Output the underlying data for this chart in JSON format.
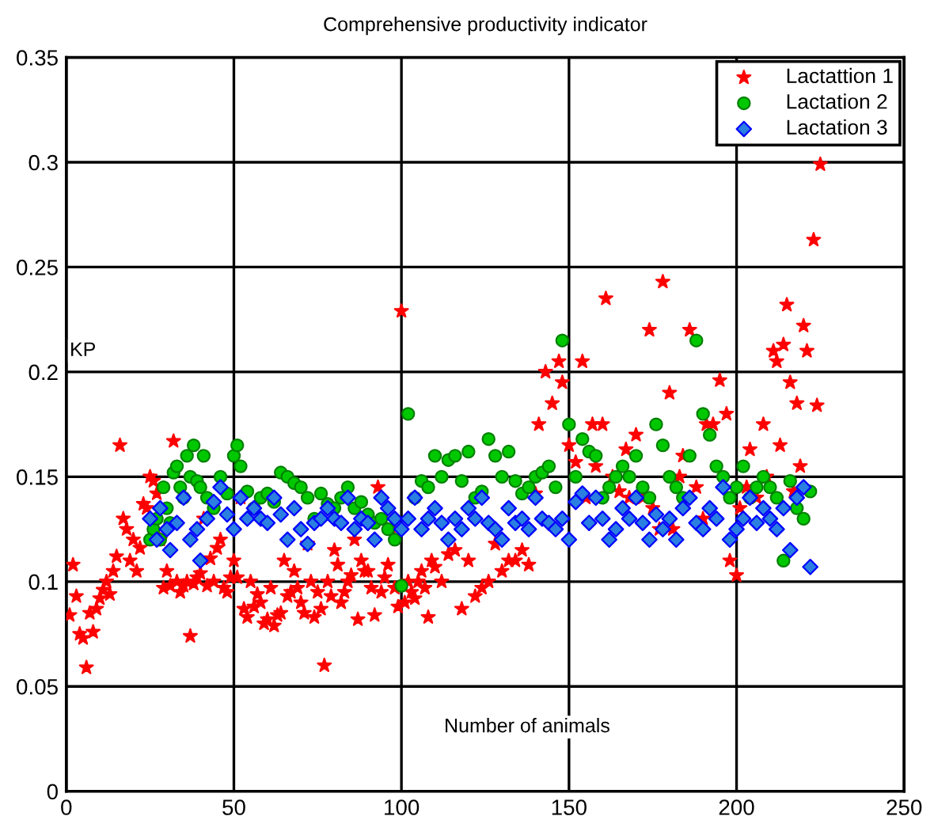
{
  "chart_data": {
    "type": "scatter",
    "title": "Comprehensive productivity indicator",
    "xlabel": "Number of animals",
    "ylabel": "KP",
    "xlim": [
      0,
      250
    ],
    "xticks": [
      0,
      50,
      100,
      150,
      200,
      250
    ],
    "ylim": [
      0,
      0.35
    ],
    "yticks": [
      0,
      0.05,
      0.1,
      0.15,
      0.2,
      0.25,
      0.3,
      0.35
    ],
    "grid": true,
    "legend": "top right",
    "series": [
      {
        "name": "Lactattion 1",
        "color": "#ff0000",
        "marker": "star",
        "x": [
          1,
          2,
          3,
          4,
          5,
          6,
          7,
          8,
          9,
          10,
          11,
          12,
          13,
          14,
          15,
          16,
          17,
          18,
          19,
          20,
          21,
          22,
          23,
          24,
          25,
          26,
          27,
          28,
          29,
          30,
          31,
          32,
          33,
          34,
          35,
          36,
          37,
          38,
          39,
          40,
          41,
          42,
          43,
          44,
          45,
          46,
          47,
          48,
          49,
          50,
          51,
          52,
          53,
          54,
          55,
          56,
          57,
          58,
          59,
          60,
          61,
          62,
          63,
          64,
          65,
          66,
          67,
          68,
          69,
          70,
          71,
          72,
          73,
          74,
          75,
          76,
          77,
          78,
          79,
          80,
          81,
          82,
          83,
          84,
          85,
          86,
          87,
          88,
          89,
          90,
          91,
          92,
          93,
          94,
          95,
          96,
          97,
          98,
          99,
          100,
          101,
          102,
          103,
          104,
          105,
          106,
          107,
          108,
          109,
          110,
          112,
          114,
          116,
          118,
          120,
          122,
          124,
          126,
          128,
          130,
          132,
          134,
          136,
          138,
          140,
          141,
          143,
          145,
          147,
          148,
          150,
          152,
          154,
          155,
          157,
          158,
          160,
          161,
          163,
          165,
          167,
          168,
          170,
          172,
          174,
          175,
          177,
          178,
          180,
          181,
          183,
          184,
          186,
          188,
          190,
          191,
          193,
          195,
          197,
          198,
          200,
          201,
          203,
          204,
          206,
          208,
          209,
          211,
          212,
          213,
          214,
          215,
          216,
          217,
          218,
          219,
          220,
          221,
          225,
          223,
          224
        ],
        "values": [
          0.084,
          0.108,
          0.093,
          0.075,
          0.073,
          0.059,
          0.085,
          0.076,
          0.087,
          0.092,
          0.096,
          0.1,
          0.094,
          0.105,
          0.112,
          0.165,
          0.13,
          0.125,
          0.11,
          0.12,
          0.105,
          0.116,
          0.137,
          0.135,
          0.15,
          0.148,
          0.142,
          0.12,
          0.097,
          0.105,
          0.098,
          0.167,
          0.1,
          0.095,
          0.098,
          0.1,
          0.074,
          0.099,
          0.102,
          0.104,
          0.13,
          0.098,
          0.111,
          0.1,
          0.116,
          0.12,
          0.097,
          0.095,
          0.102,
          0.11,
          0.102,
          0.14,
          0.087,
          0.083,
          0.1,
          0.088,
          0.094,
          0.09,
          0.08,
          0.082,
          0.097,
          0.079,
          0.084,
          0.085,
          0.11,
          0.093,
          0.095,
          0.105,
          0.097,
          0.09,
          0.085,
          0.118,
          0.1,
          0.083,
          0.095,
          0.087,
          0.06,
          0.1,
          0.093,
          0.115,
          0.108,
          0.09,
          0.095,
          0.1,
          0.103,
          0.12,
          0.082,
          0.11,
          0.105,
          0.105,
          0.097,
          0.084,
          0.145,
          0.095,
          0.102,
          0.108,
          0.125,
          0.097,
          0.088,
          0.229,
          0.09,
          0.1,
          0.095,
          0.092,
          0.1,
          0.105,
          0.097,
          0.083,
          0.11,
          0.107,
          0.1,
          0.113,
          0.115,
          0.087,
          0.11,
          0.093,
          0.097,
          0.1,
          0.118,
          0.105,
          0.11,
          0.11,
          0.115,
          0.108,
          0.142,
          0.175,
          0.2,
          0.185,
          0.205,
          0.195,
          0.165,
          0.157,
          0.205,
          0.14,
          0.175,
          0.155,
          0.175,
          0.235,
          0.15,
          0.143,
          0.163,
          0.14,
          0.17,
          0.14,
          0.22,
          0.135,
          0.125,
          0.243,
          0.19,
          0.125,
          0.15,
          0.16,
          0.22,
          0.145,
          0.13,
          0.175,
          0.175,
          0.196,
          0.18,
          0.11,
          0.103,
          0.135,
          0.145,
          0.163,
          0.14,
          0.175,
          0.15,
          0.21,
          0.205,
          0.165,
          0.213,
          0.232,
          0.195,
          0.143,
          0.185,
          0.155,
          0.222,
          0.21,
          0.299,
          0.263,
          0.184
        ]
      },
      {
        "name": "Lactation 2",
        "color": "#00c800",
        "marker": "circle",
        "x": [
          25,
          26,
          27,
          28,
          29,
          30,
          31,
          32,
          33,
          34,
          35,
          36,
          37,
          38,
          39,
          40,
          41,
          42,
          44,
          46,
          48,
          50,
          51,
          52,
          54,
          56,
          58,
          60,
          62,
          64,
          66,
          68,
          70,
          72,
          74,
          76,
          78,
          80,
          82,
          84,
          86,
          88,
          90,
          92,
          94,
          96,
          98,
          100,
          102,
          104,
          106,
          108,
          110,
          112,
          114,
          116,
          118,
          120,
          122,
          124,
          126,
          128,
          130,
          132,
          134,
          136,
          138,
          140,
          142,
          144,
          146,
          148,
          150,
          152,
          154,
          156,
          158,
          160,
          162,
          164,
          166,
          168,
          170,
          172,
          174,
          176,
          178,
          180,
          182,
          184,
          186,
          188,
          190,
          192,
          194,
          196,
          198,
          200,
          202,
          204,
          206,
          208,
          210,
          212,
          214,
          216,
          218,
          220,
          222
        ],
        "values": [
          0.12,
          0.125,
          0.13,
          0.12,
          0.145,
          0.135,
          0.128,
          0.152,
          0.155,
          0.145,
          0.14,
          0.16,
          0.15,
          0.165,
          0.148,
          0.145,
          0.16,
          0.14,
          0.135,
          0.15,
          0.142,
          0.16,
          0.165,
          0.155,
          0.143,
          0.135,
          0.14,
          0.142,
          0.138,
          0.152,
          0.15,
          0.147,
          0.145,
          0.14,
          0.13,
          0.142,
          0.137,
          0.135,
          0.14,
          0.145,
          0.135,
          0.138,
          0.132,
          0.128,
          0.13,
          0.125,
          0.12,
          0.098,
          0.18,
          0.14,
          0.148,
          0.145,
          0.16,
          0.15,
          0.158,
          0.16,
          0.148,
          0.162,
          0.14,
          0.143,
          0.168,
          0.16,
          0.15,
          0.162,
          0.148,
          0.142,
          0.145,
          0.15,
          0.152,
          0.155,
          0.145,
          0.215,
          0.175,
          0.15,
          0.168,
          0.162,
          0.16,
          0.14,
          0.145,
          0.15,
          0.155,
          0.15,
          0.16,
          0.145,
          0.14,
          0.175,
          0.165,
          0.15,
          0.145,
          0.14,
          0.16,
          0.215,
          0.18,
          0.17,
          0.155,
          0.15,
          0.14,
          0.145,
          0.155,
          0.14,
          0.145,
          0.15,
          0.145,
          0.14,
          0.11,
          0.148,
          0.135,
          0.13,
          0.143
        ]
      },
      {
        "name": "Lactation 3",
        "color": "#2a7fe0",
        "marker": "diamond",
        "x": [
          25,
          27,
          28,
          30,
          31,
          33,
          35,
          37,
          39,
          40,
          42,
          44,
          46,
          48,
          50,
          52,
          54,
          56,
          58,
          60,
          62,
          64,
          66,
          68,
          70,
          72,
          74,
          76,
          78,
          80,
          82,
          84,
          86,
          88,
          90,
          92,
          94,
          96,
          98,
          100,
          102,
          104,
          106,
          108,
          110,
          112,
          114,
          116,
          118,
          120,
          122,
          124,
          126,
          128,
          130,
          132,
          134,
          136,
          138,
          140,
          142,
          144,
          146,
          148,
          150,
          152,
          154,
          156,
          158,
          160,
          162,
          164,
          166,
          168,
          170,
          172,
          174,
          176,
          178,
          180,
          182,
          184,
          186,
          188,
          190,
          192,
          194,
          196,
          198,
          200,
          202,
          204,
          206,
          208,
          210,
          212,
          214,
          216,
          218,
          220,
          222
        ],
        "values": [
          0.13,
          0.12,
          0.135,
          0.125,
          0.115,
          0.128,
          0.14,
          0.12,
          0.125,
          0.11,
          0.13,
          0.138,
          0.145,
          0.132,
          0.125,
          0.14,
          0.13,
          0.135,
          0.13,
          0.128,
          0.14,
          0.132,
          0.12,
          0.135,
          0.125,
          0.118,
          0.128,
          0.13,
          0.135,
          0.13,
          0.128,
          0.14,
          0.125,
          0.13,
          0.128,
          0.12,
          0.14,
          0.135,
          0.13,
          0.125,
          0.13,
          0.14,
          0.125,
          0.13,
          0.135,
          0.128,
          0.12,
          0.13,
          0.125,
          0.135,
          0.13,
          0.14,
          0.128,
          0.125,
          0.12,
          0.135,
          0.128,
          0.13,
          0.125,
          0.14,
          0.13,
          0.128,
          0.125,
          0.13,
          0.12,
          0.138,
          0.142,
          0.128,
          0.14,
          0.13,
          0.12,
          0.125,
          0.135,
          0.13,
          0.14,
          0.128,
          0.12,
          0.132,
          0.125,
          0.13,
          0.12,
          0.135,
          0.14,
          0.128,
          0.125,
          0.135,
          0.13,
          0.145,
          0.12,
          0.125,
          0.13,
          0.14,
          0.128,
          0.135,
          0.13,
          0.125,
          0.135,
          0.115,
          0.14,
          0.145,
          0.107
        ]
      }
    ]
  }
}
